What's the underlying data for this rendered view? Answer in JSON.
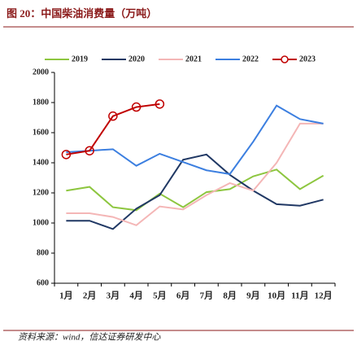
{
  "title": "图 20：中国柴油消费量（万吨）",
  "source": "资料来源：wind，信达证券研发中心",
  "chart_data": {
    "type": "line",
    "categories": [
      "1月",
      "2月",
      "3月",
      "4月",
      "5月",
      "6月",
      "7月",
      "8月",
      "9月",
      "10月",
      "11月",
      "12月"
    ],
    "ylim": [
      600,
      2000
    ],
    "yticks": [
      600,
      800,
      1000,
      1200,
      1400,
      1600,
      1800,
      2000
    ],
    "legend": "top",
    "series": [
      {
        "name": "2019",
        "color": "#8dc63f",
        "values": [
          1215,
          1240,
          1105,
          1085,
          1195,
          1105,
          1205,
          1225,
          1310,
          1355,
          1225,
          1315
        ]
      },
      {
        "name": "2020",
        "color": "#203864",
        "values": [
          1015,
          1015,
          960,
          1095,
          1185,
          1420,
          1455,
          1320,
          1215,
          1125,
          1115,
          1155
        ]
      },
      {
        "name": "2021",
        "color": "#f4b6b6",
        "values": [
          1065,
          1065,
          1040,
          985,
          1110,
          1090,
          1185,
          1265,
          1215,
          1400,
          1660,
          1660
        ]
      },
      {
        "name": "2022",
        "color": "#3c7fe0",
        "values": [
          1470,
          1480,
          1490,
          1380,
          1460,
          1405,
          1350,
          1325,
          1540,
          1780,
          1690,
          1660
        ]
      },
      {
        "name": "2023",
        "color": "#c00000",
        "markers": true,
        "values": [
          1455,
          1480,
          1710,
          1770,
          1790,
          null,
          null,
          null,
          null,
          null,
          null,
          null
        ]
      }
    ]
  }
}
